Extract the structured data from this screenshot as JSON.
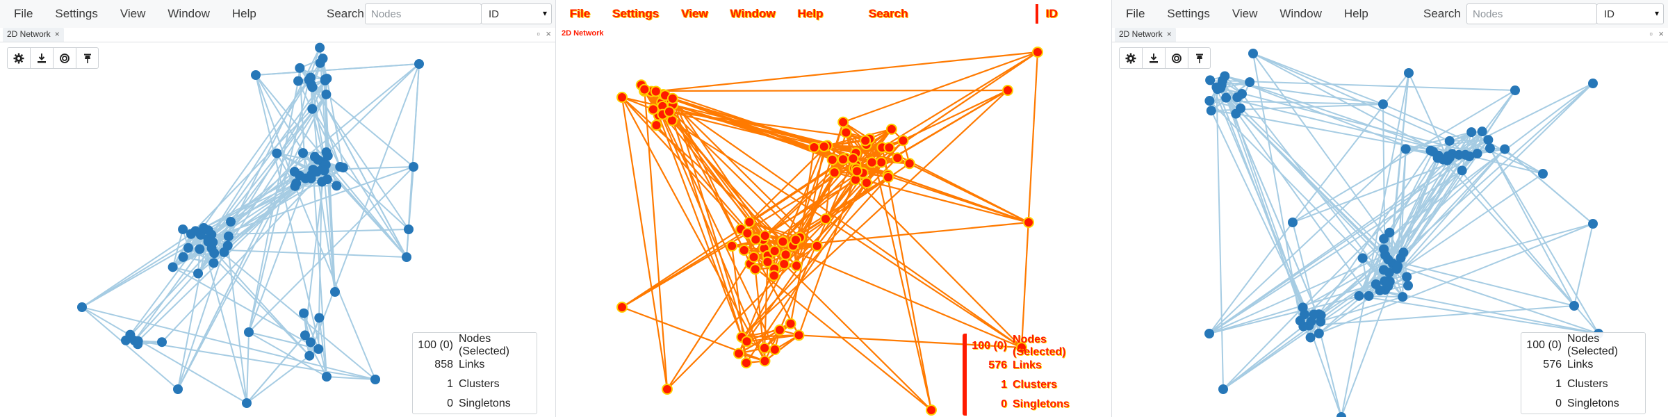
{
  "menu": {
    "items": [
      "File",
      "Settings",
      "View",
      "Window",
      "Help"
    ],
    "search_label": "Search",
    "search_placeholder": "Nodes",
    "select_value": "ID"
  },
  "tab": {
    "label": "2D Network"
  },
  "stats_left": {
    "rows": [
      {
        "value": "100 (0)",
        "label": "Nodes (Selected)"
      },
      {
        "value": "858",
        "label": "Links"
      },
      {
        "value": "1",
        "label": "Clusters"
      },
      {
        "value": "0",
        "label": "Singletons"
      }
    ]
  },
  "stats_middle": {
    "rows": [
      {
        "value": "100 (0)",
        "label": "Nodes (Selected)"
      },
      {
        "value": "576",
        "label": "Links"
      },
      {
        "value": "1",
        "label": "Clusters"
      },
      {
        "value": "0",
        "label": "Singletons"
      }
    ]
  },
  "stats_right": {
    "rows": [
      {
        "value": "100 (0)",
        "label": "Nodes (Selected)"
      },
      {
        "value": "576",
        "label": "Links"
      },
      {
        "value": "1",
        "label": "Clusters"
      },
      {
        "value": "0",
        "label": "Singletons"
      }
    ]
  },
  "colors": {
    "node": "#2677b8",
    "link": "#a6cce3",
    "mid_node": "#ff1a00",
    "mid_link": "#ff7a00"
  },
  "icons": [
    "gear-icon",
    "download-icon",
    "target-icon",
    "pin-icon"
  ]
}
